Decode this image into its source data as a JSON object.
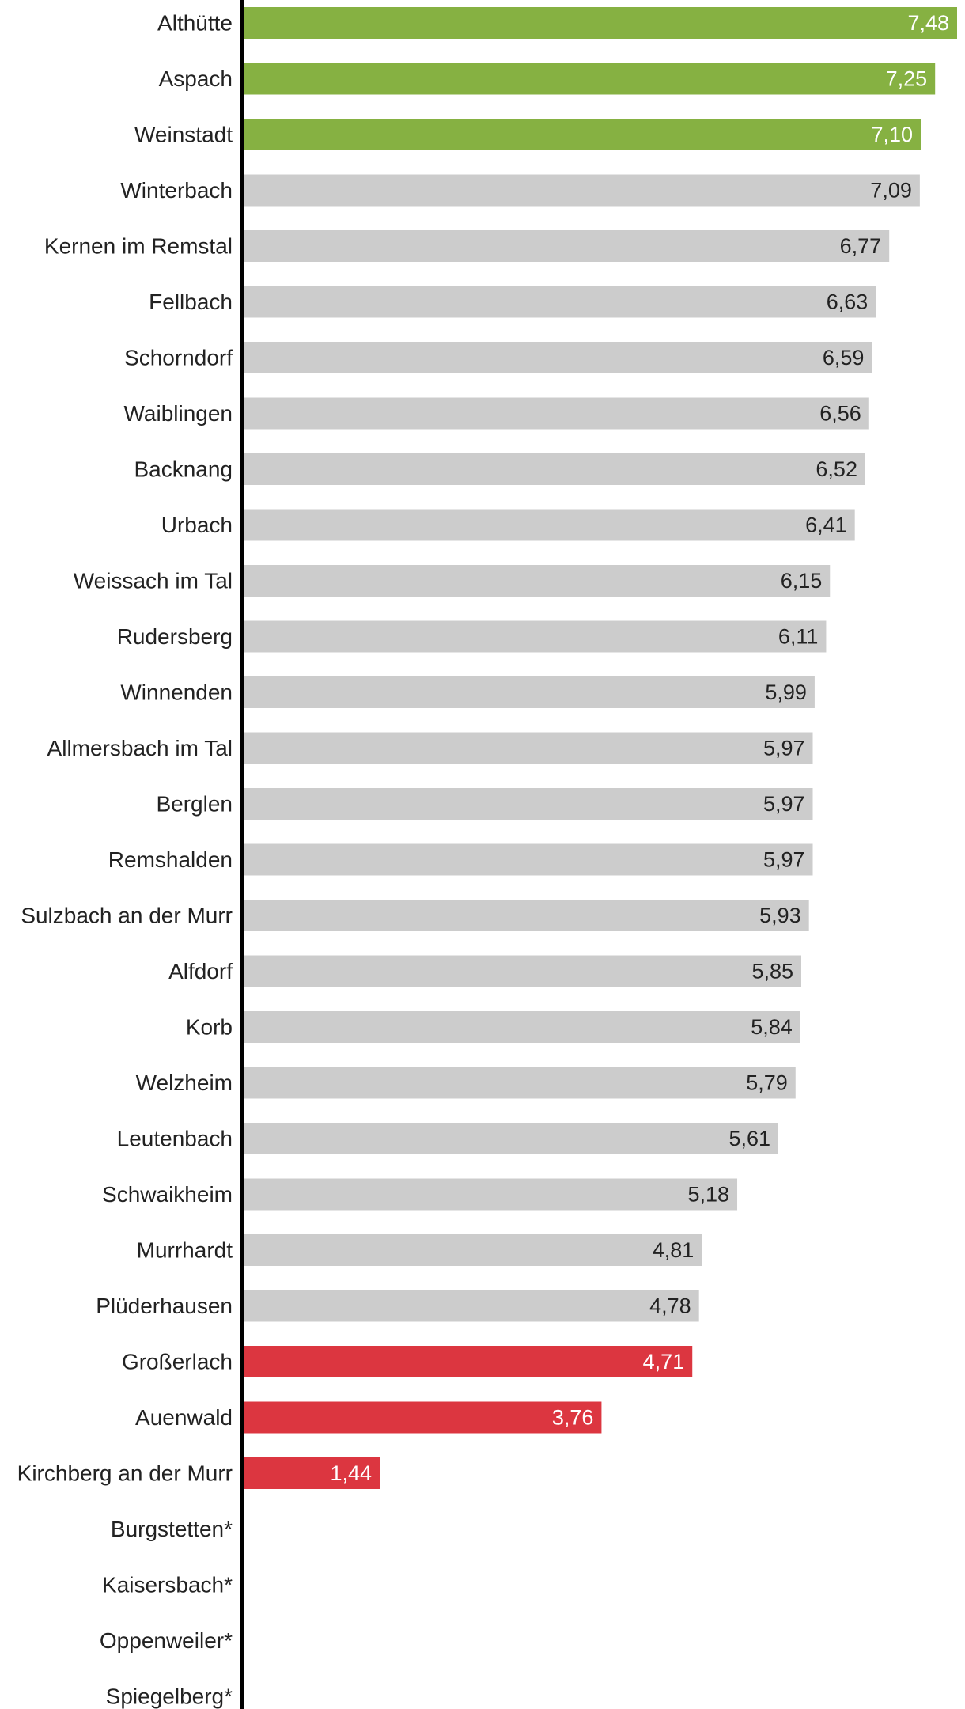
{
  "chart_data": {
    "type": "bar",
    "orientation": "horizontal",
    "title": "",
    "xlabel": "",
    "ylabel": "",
    "xlim": [
      0,
      7.48
    ],
    "grid": false,
    "legend": "none",
    "decimal_separator": ",",
    "colors": {
      "top": "#86b142",
      "neutral": "#cccccc",
      "bottom": "#dc3640",
      "axis": "#000000",
      "label_light": "#ffffff",
      "label_dark": "#222222"
    },
    "categories": [
      "Althütte",
      "Aspach",
      "Weinstadt",
      "Winterbach",
      "Kernen im Remstal",
      "Fellbach",
      "Schorndorf",
      "Waiblingen",
      "Backnang",
      "Urbach",
      "Weissach im Tal",
      "Rudersberg",
      "Winnenden",
      "Allmersbach im Tal",
      "Berglen",
      "Remshalden",
      "Sulzbach an der Murr",
      "Alfdorf",
      "Korb",
      "Welzheim",
      "Leutenbach",
      "Schwaikheim",
      "Murrhardt",
      "Plüderhausen",
      "Großerlach",
      "Auenwald",
      "Kirchberg an der Murr",
      "Burgstetten*",
      "Kaisersbach*",
      "Oppenweiler*",
      "Spiegelberg*"
    ],
    "values": [
      7.48,
      7.25,
      7.1,
      7.09,
      6.77,
      6.63,
      6.59,
      6.56,
      6.52,
      6.41,
      6.15,
      6.11,
      5.99,
      5.97,
      5.97,
      5.97,
      5.93,
      5.85,
      5.84,
      5.79,
      5.61,
      5.18,
      4.81,
      4.78,
      4.71,
      3.76,
      1.44,
      null,
      null,
      null,
      null
    ],
    "value_labels": [
      "7,48",
      "7,25",
      "7,10",
      "7,09",
      "6,77",
      "6,63",
      "6,59",
      "6,56",
      "6,52",
      "6,41",
      "6,15",
      "6,11",
      "5,99",
      "5,97",
      "5,97",
      "5,97",
      "5,93",
      "5,85",
      "5,84",
      "5,79",
      "5,61",
      "5,18",
      "4,81",
      "4,78",
      "4,71",
      "3,76",
      "1,44",
      "",
      "",
      "",
      ""
    ],
    "highlight": [
      "top",
      "top",
      "top",
      "neutral",
      "neutral",
      "neutral",
      "neutral",
      "neutral",
      "neutral",
      "neutral",
      "neutral",
      "neutral",
      "neutral",
      "neutral",
      "neutral",
      "neutral",
      "neutral",
      "neutral",
      "neutral",
      "neutral",
      "neutral",
      "neutral",
      "neutral",
      "neutral",
      "bottom",
      "bottom",
      "bottom",
      "none",
      "none",
      "none",
      "none"
    ]
  }
}
